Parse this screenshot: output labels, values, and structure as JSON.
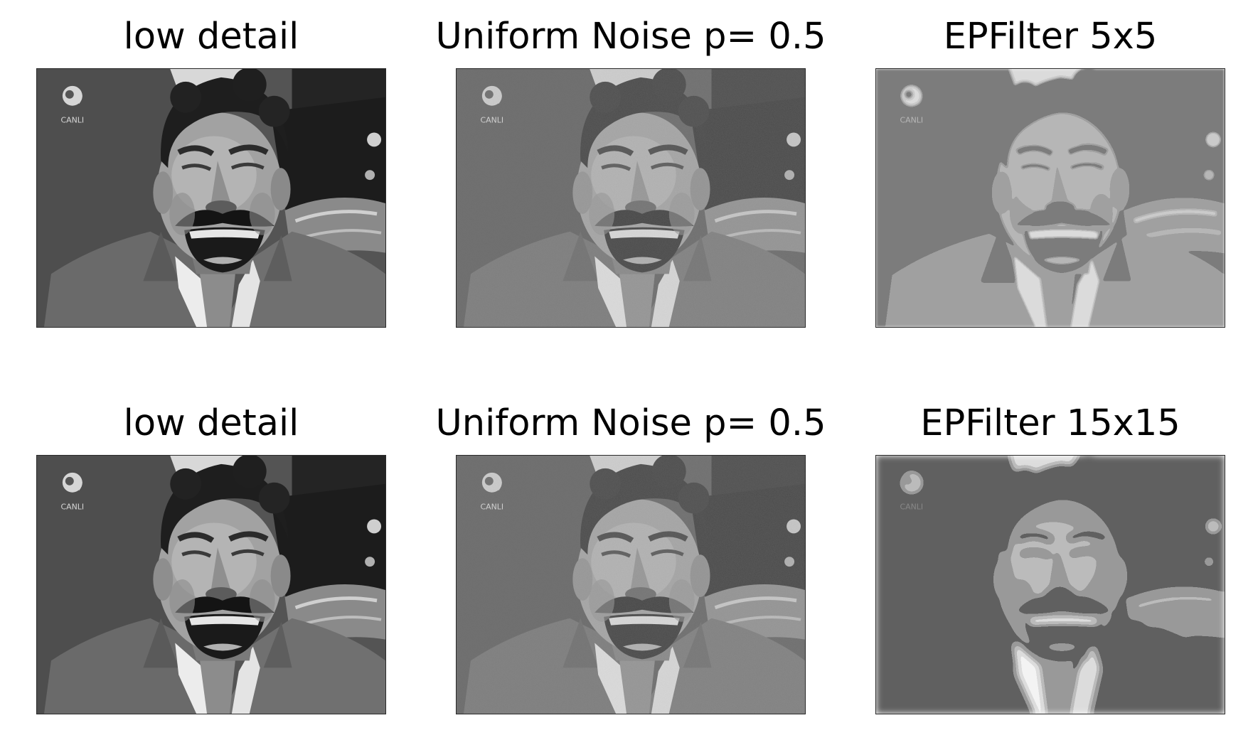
{
  "figure": {
    "panels": [
      {
        "title": "low detail",
        "variant": "original",
        "logo_text": "CANLI"
      },
      {
        "title": "Uniform Noise p= 0.5",
        "variant": "noisy",
        "logo_text": "CANLI"
      },
      {
        "title": "EPFilter 5x5",
        "variant": "filtered-5",
        "logo_text": "CANLI"
      },
      {
        "title": "low detail",
        "variant": "original",
        "logo_text": "CANLI"
      },
      {
        "title": "Uniform Noise p= 0.5",
        "variant": "noisy",
        "logo_text": "CANLI"
      },
      {
        "title": "EPFilter 15x15",
        "variant": "filtered-15",
        "logo_text": "CANLI"
      }
    ]
  }
}
